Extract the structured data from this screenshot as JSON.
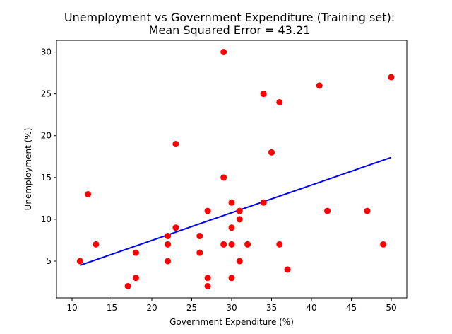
{
  "chart_data": {
    "type": "scatter",
    "title_line1": "Unemployment vs Government Expenditure (Training set):",
    "title_line2": "Mean Squared Error = 43.21",
    "xlabel": "Government Expenditure (%)",
    "ylabel": "Unemployment (%)",
    "xlim": [
      8.05,
      51.95
    ],
    "ylim": [
      0.6,
      31.4
    ],
    "xticks": [
      10,
      15,
      20,
      25,
      30,
      35,
      40,
      45,
      50
    ],
    "yticks": [
      5,
      10,
      15,
      20,
      25,
      30
    ],
    "grid": false,
    "series": [
      {
        "kind": "points",
        "color": "#ff0000",
        "x": [
          11,
          12,
          13,
          17,
          18,
          18,
          22,
          22,
          22,
          23,
          23,
          26,
          26,
          27,
          27,
          27,
          29,
          29,
          29,
          30,
          30,
          30,
          30,
          31,
          31,
          31,
          32,
          34,
          34,
          35,
          36,
          36,
          37,
          41,
          42,
          47,
          49,
          50
        ],
        "y": [
          5,
          13,
          7,
          2,
          3,
          6,
          5,
          7,
          8,
          9,
          19,
          6,
          8,
          2,
          3,
          11,
          7,
          15,
          30,
          3,
          7,
          9,
          12,
          5,
          10,
          11,
          7,
          12,
          25,
          18,
          7,
          24,
          4,
          26,
          11,
          11,
          7,
          27
        ]
      },
      {
        "kind": "line",
        "color": "#0000ff",
        "x": [
          11,
          50
        ],
        "y": [
          4.5,
          17.4
        ]
      }
    ]
  }
}
